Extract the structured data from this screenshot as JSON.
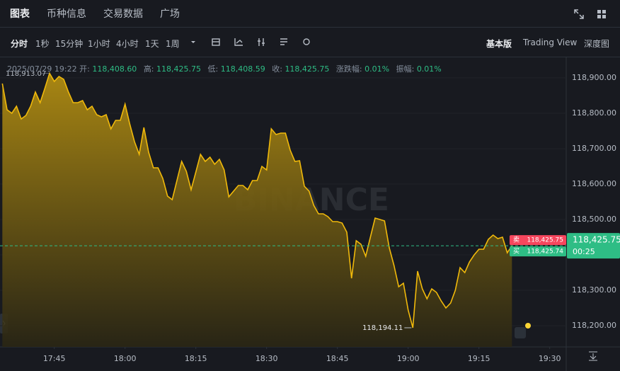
{
  "header": {
    "tabs": [
      "图表",
      "币种信息",
      "交易数据",
      "广场"
    ]
  },
  "toolbar": {
    "intervals": [
      "分时",
      "1秒",
      "15分钟",
      "1小时",
      "4小时",
      "1天",
      "1周"
    ],
    "views": [
      "基本版",
      "Trading View",
      "深度图"
    ]
  },
  "ohlc": {
    "date": "2025/07/29 19:22",
    "open_label": "开:",
    "open": "118,408.60",
    "high_label": "高:",
    "high": "118,425.75",
    "low_label": "低:",
    "low": "118,408.59",
    "close_label": "收:",
    "close": "118,425.75",
    "change_label": "涨跌幅:",
    "change": "0.01%",
    "amplitude_label": "振幅:",
    "amplitude": "0.01%"
  },
  "price_tags": {
    "sell_label": "卖",
    "sell": "118,425.75",
    "buy_label": "买",
    "buy": "118,425.74",
    "last": "118,425.75",
    "countdown": "00:25"
  },
  "watermark": "BINANCE",
  "chart_data": {
    "type": "area",
    "color": "#f0b90b",
    "x": [
      1054,
      1055,
      1056,
      1057,
      1058,
      1059,
      1060,
      1061,
      1062,
      1063,
      1064,
      1065,
      1066,
      1067,
      1068,
      1069,
      1070,
      1071,
      1072,
      1073,
      1074,
      1075,
      1076,
      1077,
      1078,
      1079,
      1080,
      1081,
      1082,
      1083,
      1084,
      1085,
      1086,
      1087,
      1088,
      1089,
      1090,
      1091,
      1092,
      1093,
      1094,
      1095,
      1096,
      1097,
      1098,
      1099,
      1100,
      1101,
      1102,
      1103,
      1104,
      1105,
      1106,
      1107,
      1108,
      1109,
      1110,
      1111,
      1112,
      1113,
      1114,
      1115,
      1116,
      1117,
      1118,
      1119,
      1120,
      1121,
      1122,
      1123,
      1124,
      1125,
      1126,
      1127,
      1128,
      1129,
      1130,
      1131,
      1132,
      1133,
      1134,
      1135,
      1136,
      1137,
      1138,
      1139,
      1140,
      1141,
      1142,
      1143,
      1144,
      1145,
      1146,
      1147,
      1148,
      1149,
      1150,
      1151,
      1152,
      1153,
      1154,
      1155,
      1156,
      1157,
      1158,
      1159,
      1160,
      1161,
      1162
    ],
    "values": [
      118884,
      118810,
      118800,
      118820,
      118784,
      118794,
      118820,
      118860,
      118830,
      118870,
      118913.07,
      118890,
      118904,
      118896,
      118860,
      118830,
      118830,
      118836,
      118810,
      118820,
      118796,
      118790,
      118796,
      118756,
      118780,
      118780,
      118826,
      118770,
      118720,
      118684,
      118760,
      118690,
      118646,
      118646,
      118616,
      118566,
      118556,
      118610,
      118664,
      118636,
      118584,
      118634,
      118684,
      118664,
      118676,
      118656,
      118670,
      118640,
      118564,
      118580,
      118596,
      118596,
      118584,
      118610,
      118610,
      118650,
      118640,
      118756,
      118740,
      118744,
      118744,
      118696,
      118664,
      118666,
      118594,
      118580,
      118540,
      118516,
      118516,
      118508,
      118494,
      118494,
      118490,
      118464,
      118334,
      118440,
      118430,
      118396,
      118450,
      118504,
      118500,
      118496,
      118420,
      118370,
      118310,
      118320,
      118244,
      118194.11,
      118354,
      118304,
      118276,
      118304,
      118294,
      118270,
      118250,
      118264,
      118300,
      118364,
      118350,
      118380,
      118400,
      118416,
      118416,
      118444,
      118456,
      118446,
      118450,
      118406,
      118425.75
    ],
    "xlim": [
      1053.5,
      1173.5
    ],
    "ylim": [
      118140,
      118950
    ],
    "xticks": [
      {
        "value": 1065,
        "label": "17:45"
      },
      {
        "value": 1080,
        "label": "18:00"
      },
      {
        "value": 1095,
        "label": "18:15"
      },
      {
        "value": 1110,
        "label": "18:30"
      },
      {
        "value": 1125,
        "label": "18:45"
      },
      {
        "value": 1140,
        "label": "19:00"
      },
      {
        "value": 1155,
        "label": "19:15"
      },
      {
        "value": 1170,
        "label": "19:30"
      }
    ],
    "yticks": [
      {
        "value": 118200,
        "label": "118,200.00"
      },
      {
        "value": 118300,
        "label": "118,300.00"
      },
      {
        "value": 118400,
        "label": "118,400.00"
      },
      {
        "value": 118500,
        "label": "118,500.00"
      },
      {
        "value": 118600,
        "label": "118,600.00"
      },
      {
        "value": 118700,
        "label": "118,700.00"
      },
      {
        "value": 118800,
        "label": "118,800.00"
      },
      {
        "value": 118900,
        "label": "118,900.00"
      }
    ],
    "annotations": {
      "high": "118,913.07",
      "low": "118,194.11"
    }
  }
}
